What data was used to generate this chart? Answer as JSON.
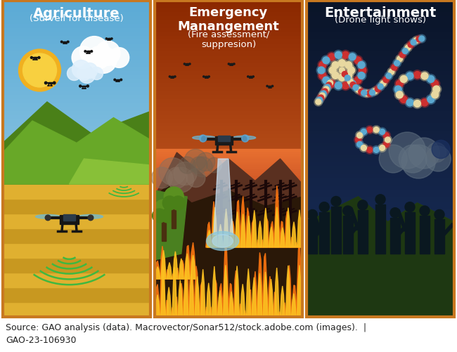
{
  "panel1": {
    "title": "Agriculture",
    "subtitle": "(Surveil for disease)",
    "sky_top": "#5baad5",
    "sky_bottom": "#a8d4ea",
    "field_color": "#e8c050",
    "field_stripe1": "#e0b840",
    "field_stripe2": "#d4a830",
    "hill1_color": "#5a9a20",
    "hill2_color": "#78b830",
    "hill3_color": "#90c840",
    "sun_color": "#f0b020",
    "sun_inner": "#f8d040"
  },
  "panel2": {
    "title": "Emergency\nManangement",
    "subtitle": "(Fire assessment/\nsuppresion)",
    "sky_top": "#8b2800",
    "sky_bottom": "#e06020",
    "ground_color": "#3a2010",
    "fire1": "#f87010",
    "fire2": "#fca020",
    "fire3": "#ffe040"
  },
  "panel3": {
    "title": "Entertainment",
    "subtitle": "(Drone light shows)",
    "sky_top": "#0a1428",
    "sky_bottom": "#1a3060",
    "hill_color": "#2a4820",
    "crowd_color": "#0a1820",
    "dot_red": "#cc3030",
    "dot_blue": "#5aA8d0",
    "dot_cream": "#e8d8a0"
  },
  "footer": "Source: GAO analysis (data). Macrovector/Sonar512/stock.adobe.com (images).  |\nGAO-23-106930",
  "footer_fontsize": 9,
  "title_fontsize": 14,
  "subtitle_fontsize": 10,
  "figure_bg": "#ffffff",
  "border_color": "#c87820",
  "border_lw": 3
}
